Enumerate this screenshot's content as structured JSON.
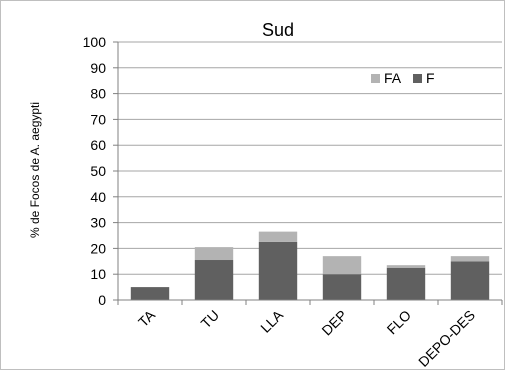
{
  "chart_data": {
    "type": "bar",
    "stacked": true,
    "title": "Sud",
    "ylabel": "% de Focos de A. aegypti",
    "xlabel": "",
    "ylim": [
      0,
      100
    ],
    "yticks": [
      0,
      10,
      20,
      30,
      40,
      50,
      60,
      70,
      80,
      90,
      100
    ],
    "grid": true,
    "legend_position": "top-right",
    "categories": [
      "TA",
      "TU",
      "LLA",
      "DEP",
      "FLO",
      "DEPO-DES"
    ],
    "series": [
      {
        "name": "F",
        "color": "#606060",
        "values": [
          5,
          15.5,
          22.5,
          10,
          12.5,
          15
        ]
      },
      {
        "name": "FA",
        "color": "#b3b3b3",
        "values": [
          0,
          5,
          4,
          7,
          1,
          2
        ]
      }
    ],
    "legend_order": [
      "FA",
      "F"
    ]
  }
}
